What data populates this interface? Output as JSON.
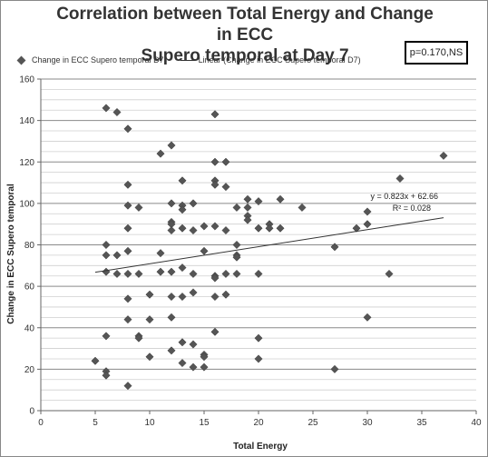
{
  "chart_data": {
    "type": "scatter",
    "title_line1": "Correlation between Total Energy and Change in ECC",
    "title_line2": "Supero temporal at Day 7",
    "xlabel": "Total Energy",
    "ylabel": "Change in ECC Supero temporal",
    "xlim": [
      0,
      40
    ],
    "ylim": [
      0,
      160
    ],
    "x_ticks": [
      0,
      5,
      10,
      15,
      20,
      25,
      30,
      35,
      40
    ],
    "y_ticks": [
      0,
      20,
      40,
      60,
      80,
      100,
      120,
      140,
      160
    ],
    "grid": "horizontal",
    "legend_position": "top",
    "series": [
      {
        "name": "Change in ECC Supero temporal D7",
        "color": "#555555",
        "points": [
          [
            5,
            24
          ],
          [
            6,
            146
          ],
          [
            6,
            80
          ],
          [
            6,
            75
          ],
          [
            6,
            67
          ],
          [
            6,
            36
          ],
          [
            6,
            19
          ],
          [
            6,
            17
          ],
          [
            7,
            144
          ],
          [
            7,
            75
          ],
          [
            7,
            66
          ],
          [
            8,
            136
          ],
          [
            8,
            109
          ],
          [
            8,
            99
          ],
          [
            8,
            88
          ],
          [
            8,
            77
          ],
          [
            8,
            66
          ],
          [
            8,
            54
          ],
          [
            8,
            44
          ],
          [
            8,
            12
          ],
          [
            9,
            98
          ],
          [
            9,
            66
          ],
          [
            9,
            36
          ],
          [
            9,
            35
          ],
          [
            10,
            56
          ],
          [
            10,
            44
          ],
          [
            10,
            26
          ],
          [
            11,
            124
          ],
          [
            11,
            76
          ],
          [
            11,
            67
          ],
          [
            12,
            128
          ],
          [
            12,
            100
          ],
          [
            12,
            91
          ],
          [
            12,
            90
          ],
          [
            12,
            87
          ],
          [
            12,
            67
          ],
          [
            12,
            55
          ],
          [
            12,
            45
          ],
          [
            12,
            29
          ],
          [
            13,
            111
          ],
          [
            13,
            99
          ],
          [
            13,
            97
          ],
          [
            13,
            88
          ],
          [
            13,
            69
          ],
          [
            13,
            55
          ],
          [
            13,
            33
          ],
          [
            13,
            23
          ],
          [
            14,
            100
          ],
          [
            14,
            87
          ],
          [
            14,
            66
          ],
          [
            14,
            57
          ],
          [
            14,
            32
          ],
          [
            14,
            21
          ],
          [
            15,
            89
          ],
          [
            15,
            77
          ],
          [
            15,
            27
          ],
          [
            15,
            26
          ],
          [
            15,
            21
          ],
          [
            16,
            143
          ],
          [
            16,
            120
          ],
          [
            16,
            111
          ],
          [
            16,
            109
          ],
          [
            16,
            89
          ],
          [
            16,
            65
          ],
          [
            16,
            64
          ],
          [
            16,
            55
          ],
          [
            16,
            38
          ],
          [
            17,
            120
          ],
          [
            17,
            108
          ],
          [
            17,
            87
          ],
          [
            17,
            66
          ],
          [
            17,
            56
          ],
          [
            18,
            98
          ],
          [
            18,
            80
          ],
          [
            18,
            75
          ],
          [
            18,
            74
          ],
          [
            18,
            66
          ],
          [
            19,
            102
          ],
          [
            19,
            98
          ],
          [
            19,
            94
          ],
          [
            19,
            92
          ],
          [
            20,
            101
          ],
          [
            20,
            88
          ],
          [
            20,
            66
          ],
          [
            20,
            35
          ],
          [
            20,
            25
          ],
          [
            21,
            90
          ],
          [
            21,
            88
          ],
          [
            22,
            102
          ],
          [
            22,
            88
          ],
          [
            24,
            98
          ],
          [
            27,
            79
          ],
          [
            27,
            20
          ],
          [
            29,
            88
          ],
          [
            30,
            96
          ],
          [
            30,
            90
          ],
          [
            30,
            45
          ],
          [
            32,
            66
          ],
          [
            33,
            112
          ],
          [
            37,
            123
          ]
        ]
      }
    ],
    "trendline": {
      "name": "Linear (Change in ECC Supero temporal D7)",
      "slope": 0.823,
      "intercept": 62.66,
      "x_range": [
        5,
        37
      ],
      "equation_label": "y = 0.823x + 62.66",
      "r2_label": "R² = 0.028"
    },
    "annotation": "p=0.170,NS"
  },
  "legend": {
    "series_label": "Change in ECC Supero temporal D7",
    "trend_label": "Linear (Change in ECC Supero temporal D7)"
  }
}
